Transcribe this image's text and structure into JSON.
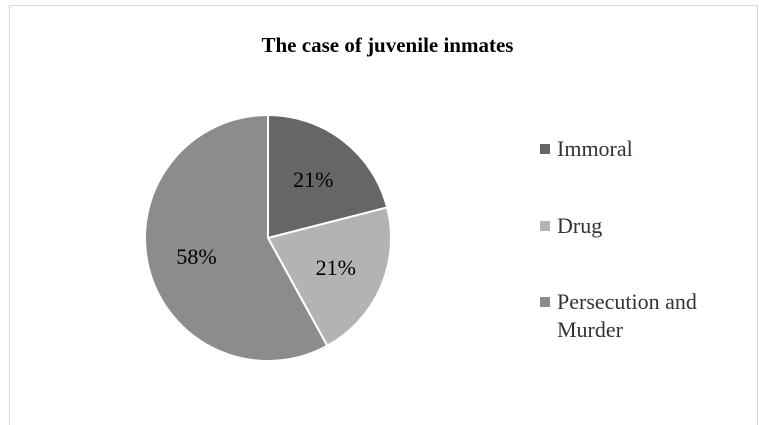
{
  "chart_data": {
    "type": "pie",
    "title": "The case of juvenile inmates",
    "slices": [
      {
        "name": "Immoral",
        "value": 21,
        "label": "21%",
        "color": "#666666"
      },
      {
        "name": "Drug",
        "value": 21,
        "label": "21%",
        "color": "#b3b3b3"
      },
      {
        "name": "Persecution and Murder",
        "value": 58,
        "label": "58%",
        "color": "#8c8c8c"
      }
    ],
    "legend": {
      "position": "right",
      "items": [
        {
          "lines": [
            "Immoral"
          ],
          "color": "#666666"
        },
        {
          "lines": [
            "Drug"
          ],
          "color": "#b3b3b3"
        },
        {
          "lines": [
            "Persecution and",
            "Murder"
          ],
          "color": "#8c8c8c"
        }
      ]
    },
    "start_angle": "12 o'clock",
    "direction": "clockwise"
  }
}
